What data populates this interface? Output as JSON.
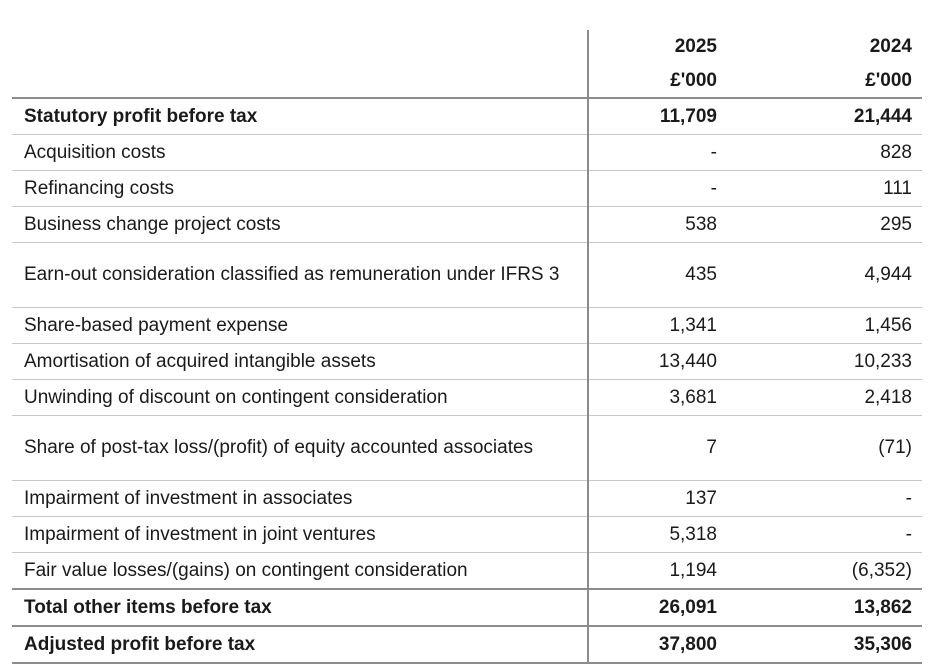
{
  "header": {
    "year_2025": "2025",
    "year_2024": "2024",
    "unit_2025": "£'000",
    "unit_2024": "£'000"
  },
  "rows": [
    {
      "label": "Statutory profit before tax",
      "v2025": "11,709",
      "v2024": "21,444",
      "bold": true
    },
    {
      "label": "Acquisition costs",
      "v2025": "-",
      "v2024": "828"
    },
    {
      "label": "Refinancing costs",
      "v2025": "-",
      "v2024": "111"
    },
    {
      "label": "Business change project costs",
      "v2025": "538",
      "v2024": "295"
    },
    {
      "label": "Earn-out consideration classified as remuneration under IFRS 3",
      "v2025": "435",
      "v2024": "4,944"
    },
    {
      "label": "Share-based payment expense",
      "v2025": "1,341",
      "v2024": "1,456"
    },
    {
      "label": "Amortisation of acquired intangible assets",
      "v2025": "13,440",
      "v2024": "10,233"
    },
    {
      "label": "Unwinding of discount on contingent consideration",
      "v2025": "3,681",
      "v2024": "2,418"
    },
    {
      "label": "Share of post-tax loss/(profit) of equity accounted associates",
      "v2025": "7",
      "v2024": "(71)"
    },
    {
      "label": "Impairment of investment in associates",
      "v2025": "137",
      "v2024": "-"
    },
    {
      "label": "Impairment of investment in joint ventures",
      "v2025": "5,318",
      "v2024": "-"
    },
    {
      "label": "Fair value losses/(gains) on contingent consideration",
      "v2025": "1,194",
      "v2024": "(6,352)"
    },
    {
      "label": "Total other items before tax",
      "v2025": "26,091",
      "v2024": "13,862",
      "bold": true
    },
    {
      "label": "Adjusted profit before tax",
      "v2025": "37,800",
      "v2024": "35,306",
      "bold": true
    }
  ]
}
